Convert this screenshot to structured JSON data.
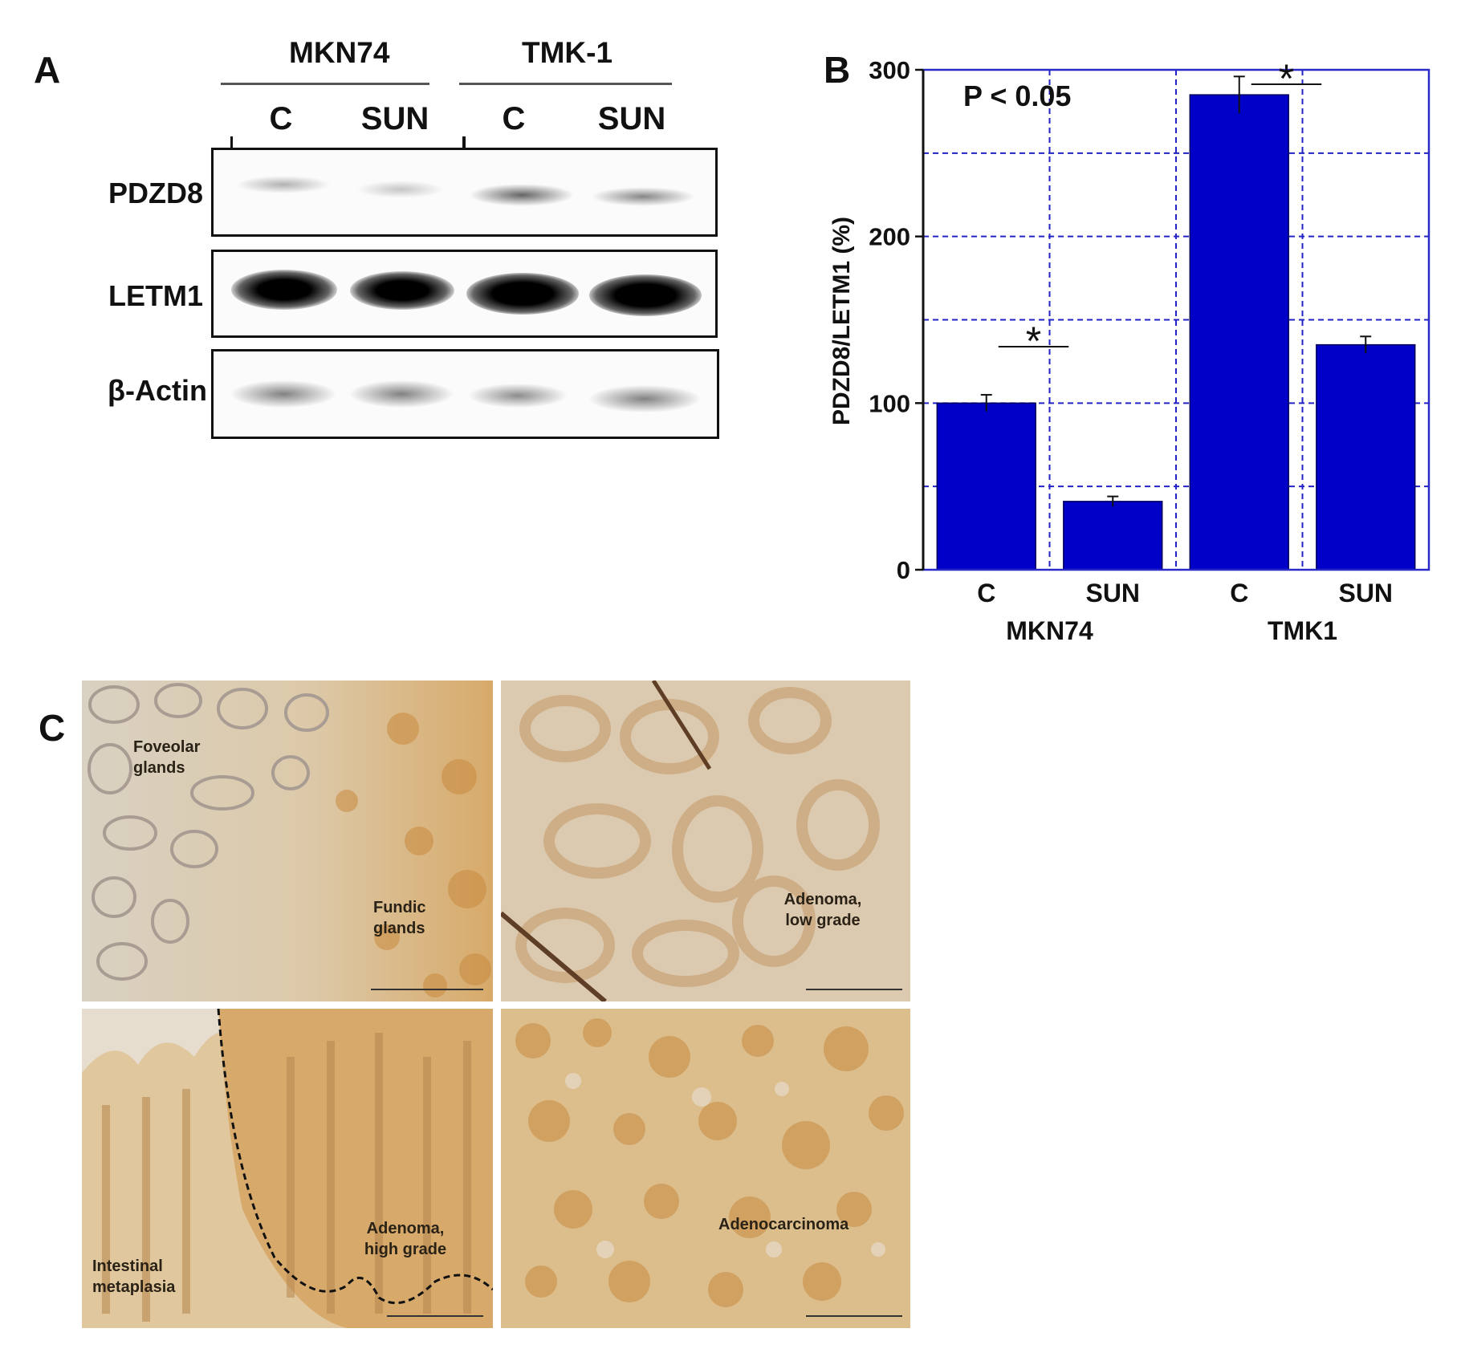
{
  "panel_a": {
    "letter": "A",
    "groups": [
      {
        "name": "MKN74",
        "lanes": [
          "C",
          "SUN"
        ]
      },
      {
        "name": "TMK-1",
        "lanes": [
          "C",
          "SUN"
        ]
      }
    ],
    "rows": [
      "PDZD8",
      "LETM1",
      "β-Actin"
    ]
  },
  "panel_b": {
    "letter": "B",
    "annotation": "P < 0.05",
    "significance_marker": "*"
  },
  "chart_data": {
    "type": "bar",
    "categories": [
      "C",
      "SUN",
      "C",
      "SUN"
    ],
    "groups": [
      {
        "name": "MKN74",
        "categories": [
          "C",
          "SUN"
        ]
      },
      {
        "name": "TMK1",
        "categories": [
          "C",
          "SUN"
        ]
      }
    ],
    "series": [
      {
        "values": [
          100,
          41,
          285,
          135
        ],
        "errors": [
          5,
          3,
          11,
          5
        ]
      }
    ],
    "ylabel": "PDZD8/LETM1 (%)",
    "xlabel": "",
    "ylim": [
      0,
      300
    ],
    "yticks": [
      0,
      100,
      200,
      300
    ],
    "grid": true,
    "bar_color": "#0000c8",
    "grid_color": "#2323c8",
    "significance": [
      {
        "between": [
          0,
          1
        ],
        "label": "*"
      },
      {
        "between": [
          2,
          3
        ],
        "label": "*"
      }
    ]
  },
  "panel_c": {
    "letter": "C",
    "images": [
      {
        "labels": [
          "Foveolar glands",
          "Fundic glands"
        ]
      },
      {
        "labels": [
          "Adenoma, low grade"
        ]
      },
      {
        "labels": [
          "Intestinal metaplasia",
          "Adenoma, high grade"
        ]
      },
      {
        "labels": [
          "Adenocarcinoma"
        ]
      }
    ]
  }
}
